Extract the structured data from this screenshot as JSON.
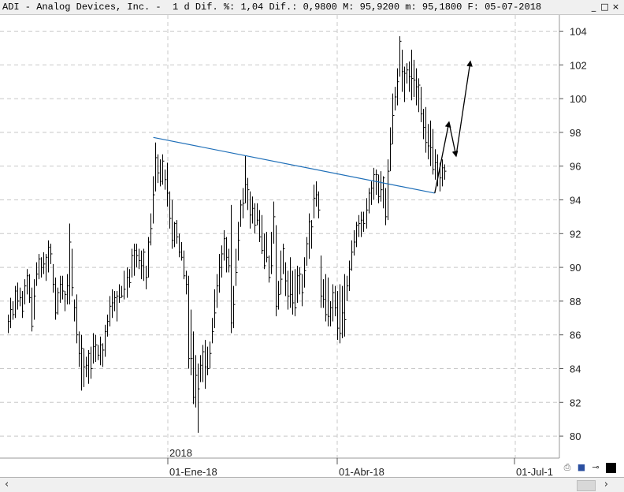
{
  "window": {
    "title": "ADI - Analog Devices, Inc. -  1 d Dif. %: 1,04 Dif.: 0,9800 M: 95,9200 m: 95,1800 F: 05-07-2018",
    "buttons": [
      "_",
      "□",
      "×"
    ]
  },
  "colors": {
    "bars": "#000000",
    "trendline": "#1f6fb8",
    "grid": "#c8c8c8",
    "arrows": "#000000",
    "background": "#ffffff"
  },
  "toolbar": {
    "icons": [
      "printer-icon",
      "save-icon",
      "pin-icon",
      "color-box-icon"
    ]
  },
  "scrollbar": {
    "left_arrow": "‹",
    "right_arrow": "›"
  },
  "chart_data": {
    "type": "ohlc",
    "x_type": "date",
    "y_axis": {
      "side": "right",
      "min": 79,
      "max": 105,
      "ticks": [
        80,
        82,
        84,
        86,
        88,
        90,
        92,
        94,
        96,
        98,
        100,
        102,
        104
      ]
    },
    "x_axis": {
      "labels": [
        "01-Ene-18",
        "01-Abr-18",
        "01-Jul-1"
      ],
      "year_label": "2018"
    },
    "grid": true,
    "bars": [
      [
        87.2,
        86.1,
        86.8
      ],
      [
        88.2,
        86.4,
        87.5
      ],
      [
        88.0,
        86.9,
        87.2
      ],
      [
        88.9,
        87.0,
        88.6
      ],
      [
        89.1,
        87.5,
        88.0
      ],
      [
        88.8,
        87.7,
        88.2
      ],
      [
        88.6,
        87.0,
        87.4
      ],
      [
        89.3,
        87.8,
        88.9
      ],
      [
        89.9,
        88.4,
        89.5
      ],
      [
        89.6,
        87.9,
        88.2
      ],
      [
        88.8,
        86.2,
        86.5
      ],
      [
        89.3,
        86.9,
        88.3
      ],
      [
        90.3,
        88.9,
        89.6
      ],
      [
        90.8,
        89.3,
        90.5
      ],
      [
        90.6,
        89.4,
        90.0
      ],
      [
        90.9,
        89.6,
        90.2
      ],
      [
        90.8,
        89.2,
        90.6
      ],
      [
        91.6,
        89.7,
        91.2
      ],
      [
        91.4,
        90.2,
        90.8
      ],
      [
        90.2,
        88.5,
        89.0
      ],
      [
        89.4,
        86.9,
        87.3
      ],
      [
        88.8,
        87.2,
        88.5
      ],
      [
        89.5,
        87.9,
        89.0
      ],
      [
        89.5,
        88.1,
        88.6
      ],
      [
        88.6,
        87.4,
        88.4
      ],
      [
        89.6,
        87.8,
        88.9
      ],
      [
        92.6,
        87.8,
        91.5
      ],
      [
        91.1,
        88.3,
        88.8
      ],
      [
        88.1,
        86.8,
        87.6
      ],
      [
        88.4,
        85.5,
        86.0
      ],
      [
        86.2,
        84.1,
        84.9
      ],
      [
        86.0,
        82.7,
        85.2
      ],
      [
        85.2,
        82.9,
        84.1
      ],
      [
        84.7,
        83.5,
        84.2
      ],
      [
        85.1,
        83.1,
        84.9
      ],
      [
        85.3,
        83.4,
        84.0
      ],
      [
        86.1,
        84.3,
        85.3
      ],
      [
        86.0,
        84.4,
        85.4
      ],
      [
        85.4,
        84.5,
        84.8
      ],
      [
        85.9,
        84.2,
        85.4
      ],
      [
        85.5,
        84.1,
        85.1
      ],
      [
        86.6,
        84.7,
        86.2
      ],
      [
        87.2,
        85.9,
        86.8
      ],
      [
        88.3,
        86.5,
        87.7
      ],
      [
        88.7,
        87.0,
        87.9
      ],
      [
        88.6,
        87.4,
        88.2
      ],
      [
        88.6,
        86.8,
        88.3
      ],
      [
        89.0,
        87.9,
        88.2
      ],
      [
        88.9,
        88.2,
        88.3
      ],
      [
        89.8,
        88.1,
        88.7
      ],
      [
        90.0,
        88.2,
        89.4
      ],
      [
        89.9,
        88.8,
        89.1
      ],
      [
        91.1,
        89.4,
        90.7
      ],
      [
        91.4,
        89.5,
        91.0
      ],
      [
        91.4,
        90.0,
        90.7
      ],
      [
        91.1,
        89.9,
        90.4
      ],
      [
        91.0,
        89.3,
        90.1
      ],
      [
        91.1,
        89.2,
        90.9
      ],
      [
        90.1,
        88.7,
        89.4
      ],
      [
        91.8,
        89.4,
        91.5
      ],
      [
        93.2,
        91.3,
        92.3
      ],
      [
        95.4,
        92.6,
        94.3
      ],
      [
        97.4,
        94.5,
        96.5
      ],
      [
        96.7,
        95.0,
        95.6
      ],
      [
        96.4,
        94.8,
        95.1
      ],
      [
        96.7,
        94.9,
        96.3
      ],
      [
        95.8,
        94.6,
        95.2
      ],
      [
        96.2,
        93.6,
        94.4
      ],
      [
        94.5,
        92.3,
        92.9
      ],
      [
        94.0,
        91.1,
        91.6
      ],
      [
        92.7,
        91.2,
        92.6
      ],
      [
        92.8,
        91.4,
        91.8
      ],
      [
        92.0,
        90.6,
        90.9
      ],
      [
        91.5,
        90.4,
        90.6
      ],
      [
        91.0,
        89.3,
        89.5
      ],
      [
        89.8,
        88.4,
        89.0
      ],
      [
        89.5,
        84.0,
        84.6
      ],
      [
        87.5,
        83.6,
        84.6
      ],
      [
        86.2,
        81.9,
        82.3
      ],
      [
        84.8,
        81.7,
        83.6
      ],
      [
        84.3,
        80.2,
        82.8
      ],
      [
        84.8,
        83.2,
        84.2
      ],
      [
        85.4,
        83.2,
        85.0
      ],
      [
        85.7,
        82.8,
        84.1
      ],
      [
        85.3,
        83.6,
        84.0
      ],
      [
        85.6,
        84.0,
        84.9
      ],
      [
        87.0,
        85.5,
        86.2
      ],
      [
        88.7,
        86.4,
        87.3
      ],
      [
        89.6,
        87.6,
        88.9
      ],
      [
        90.8,
        88.5,
        90.0
      ],
      [
        91.3,
        89.4,
        90.8
      ],
      [
        92.2,
        90.4,
        91.7
      ],
      [
        91.8,
        89.7,
        90.6
      ],
      [
        91.1,
        89.7,
        90.1
      ],
      [
        93.7,
        86.1,
        86.7
      ],
      [
        88.9,
        86.4,
        87.8
      ],
      [
        91.1,
        88.9,
        89.7
      ],
      [
        92.7,
        90.4,
        91.6
      ],
      [
        94.0,
        92.4,
        93.7
      ],
      [
        94.7,
        92.9,
        93.8
      ],
      [
        96.6,
        93.8,
        94.9
      ],
      [
        95.3,
        93.4,
        94.6
      ],
      [
        94.5,
        92.3,
        93.1
      ],
      [
        94.2,
        92.6,
        93.5
      ],
      [
        93.8,
        92.0,
        92.5
      ],
      [
        93.8,
        92.5,
        92.8
      ],
      [
        93.4,
        91.5,
        91.8
      ],
      [
        93.1,
        90.8,
        91.0
      ],
      [
        92.0,
        89.9,
        90.1
      ],
      [
        92.1,
        90.3,
        90.6
      ],
      [
        90.7,
        89.1,
        89.4
      ],
      [
        92.1,
        89.6,
        90.1
      ],
      [
        93.9,
        91.4,
        93.0
      ],
      [
        92.5,
        87.1,
        87.7
      ],
      [
        89.2,
        87.5,
        88.4
      ],
      [
        91.0,
        88.4,
        89.3
      ],
      [
        91.4,
        89.6,
        91.1
      ],
      [
        90.3,
        88.3,
        89.2
      ],
      [
        89.8,
        87.5,
        88.3
      ],
      [
        90.6,
        87.6,
        88.4
      ],
      [
        89.8,
        87.2,
        87.9
      ],
      [
        89.9,
        87.1,
        87.6
      ],
      [
        90.1,
        87.9,
        89.5
      ],
      [
        90.0,
        88.4,
        89.6
      ],
      [
        89.6,
        87.7,
        88.5
      ],
      [
        90.6,
        88.8,
        89.8
      ],
      [
        91.8,
        90.1,
        91.4
      ],
      [
        93.2,
        90.5,
        92.7
      ],
      [
        92.8,
        91.1,
        92.4
      ],
      [
        94.9,
        92.9,
        94.1
      ],
      [
        95.1,
        93.6,
        94.3
      ],
      [
        94.5,
        92.9,
        93.4
      ],
      [
        90.7,
        87.6,
        88.3
      ],
      [
        89.3,
        87.6,
        88.1
      ],
      [
        89.6,
        86.8,
        87.2
      ],
      [
        89.4,
        86.5,
        87.1
      ],
      [
        88.0,
        86.5,
        87.6
      ],
      [
        89.0,
        86.8,
        88.5
      ],
      [
        88.9,
        87.1,
        87.6
      ],
      [
        88.6,
        85.7,
        86.4
      ],
      [
        89.0,
        85.5,
        86.1
      ],
      [
        88.9,
        85.8,
        87.3
      ],
      [
        89.6,
        85.9,
        86.9
      ],
      [
        89.5,
        88.0,
        88.9
      ],
      [
        90.4,
        88.6,
        89.9
      ],
      [
        91.6,
        89.8,
        90.9
      ],
      [
        92.2,
        90.7,
        91.5
      ],
      [
        92.7,
        91.2,
        92.5
      ],
      [
        93.1,
        91.8,
        92.6
      ],
      [
        93.3,
        91.8,
        92.8
      ],
      [
        93.3,
        92.1,
        92.6
      ],
      [
        94.1,
        92.3,
        93.4
      ],
      [
        94.7,
        93.2,
        94.4
      ],
      [
        95.1,
        93.7,
        94.7
      ],
      [
        95.9,
        94.0,
        95.5
      ],
      [
        95.8,
        94.3,
        95.5
      ],
      [
        95.5,
        93.8,
        94.2
      ],
      [
        95.7,
        93.9,
        94.6
      ],
      [
        95.4,
        93.5,
        95.3
      ],
      [
        94.7,
        92.5,
        93.0
      ],
      [
        96.4,
        92.8,
        95.7
      ],
      [
        98.3,
        95.7,
        97.3
      ],
      [
        100.3,
        97.3,
        99.0
      ],
      [
        100.7,
        99.3,
        100.1
      ],
      [
        101.8,
        99.6,
        101.0
      ],
      [
        103.7,
        101.3,
        103.4
      ],
      [
        102.9,
        100.4,
        101.6
      ],
      [
        101.9,
        99.8,
        101.5
      ],
      [
        102.1,
        100.9,
        101.7
      ],
      [
        102.2,
        100.4,
        101.3
      ],
      [
        102.9,
        99.9,
        101.2
      ],
      [
        102.3,
        100.1,
        101.1
      ],
      [
        101.8,
        99.6,
        100.7
      ],
      [
        101.2,
        99.2,
        100.8
      ],
      [
        100.7,
        98.6,
        99.1
      ],
      [
        99.4,
        97.6,
        98.3
      ],
      [
        99.5,
        96.8,
        97.4
      ],
      [
        98.5,
        96.4,
        97.2
      ],
      [
        98.7,
        96.0,
        97.1
      ],
      [
        98.2,
        95.5,
        95.8
      ],
      [
        97.0,
        95.2,
        96.2
      ],
      [
        96.7,
        94.8,
        95.6
      ],
      [
        96.2,
        94.5,
        95.3
      ],
      [
        96.4,
        94.8,
        95.9
      ],
      [
        96.1,
        95.2,
        95.7
      ]
    ],
    "trendline": {
      "from_bar": 60,
      "from_y": 97.7,
      "to_bar": 179,
      "to_y": 94.4
    },
    "projection_arrow": [
      [
        179,
        94.4
      ],
      [
        185,
        98.6
      ],
      [
        188,
        96.6
      ],
      [
        194,
        102.2
      ]
    ]
  }
}
